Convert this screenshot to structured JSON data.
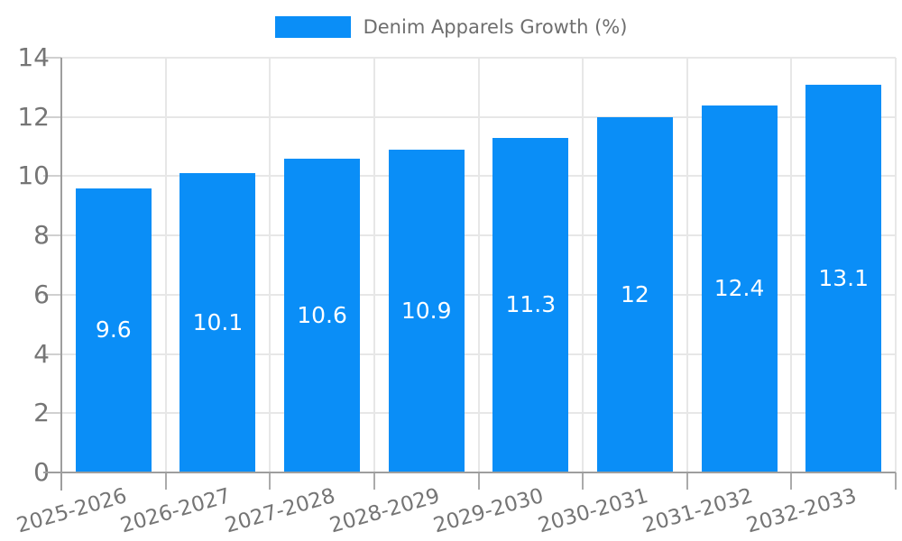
{
  "legend": {
    "label": "Denim Apparels Growth (%)"
  },
  "chart_data": {
    "type": "bar",
    "title": "Denim Apparels Growth (%)",
    "categories": [
      "2025-2026",
      "2026-2027",
      "2027-2028",
      "2028-2029",
      "2029-2030",
      "2030-2031",
      "2031-2032",
      "2032-2033"
    ],
    "series": [
      {
        "name": "Denim Apparels Growth (%)",
        "values": [
          9.6,
          10.1,
          10.6,
          10.9,
          11.3,
          12,
          12.4,
          13.1
        ],
        "value_labels": [
          "9.6",
          "10.1",
          "10.6",
          "10.9",
          "11.3",
          "12",
          "12.4",
          "13.1"
        ]
      }
    ],
    "xlabel": "",
    "ylabel": "",
    "ylim": [
      0,
      14
    ],
    "ytick_step": 2,
    "ytick_labels": [
      "0",
      "2",
      "4",
      "6",
      "8",
      "10",
      "12",
      "14"
    ],
    "grid": true,
    "legend_position": "top-center",
    "colors": {
      "bar": "#0a8ef7",
      "gridline": "#e7e7e7",
      "axis_line": "#9e9e9e",
      "tick_text": "#757575",
      "legend_text": "#6e6e6e",
      "value_text": "#ffffff",
      "background": "#ffffff"
    }
  }
}
